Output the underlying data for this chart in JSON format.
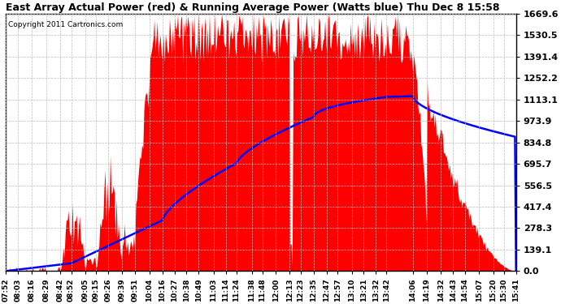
{
  "title": "East Array Actual Power (red) & Running Average Power (Watts blue) Thu Dec 8 15:58",
  "copyright": "Copyright 2011 Cartronics.com",
  "ylabel_right_ticks": [
    0.0,
    139.1,
    278.3,
    417.4,
    556.5,
    695.7,
    834.8,
    973.9,
    1113.1,
    1252.2,
    1391.4,
    1530.5,
    1669.6
  ],
  "ymax": 1669.6,
  "ymin": 0.0,
  "background_color": "#ffffff",
  "plot_bg_color": "#ffffff",
  "grid_color": "#bbbbbb",
  "fill_color": "#ff0000",
  "avg_line_color": "#0000ff",
  "x_labels": [
    "07:52",
    "08:03",
    "08:16",
    "08:29",
    "08:42",
    "08:52",
    "09:05",
    "09:15",
    "09:26",
    "09:39",
    "09:51",
    "10:04",
    "10:16",
    "10:27",
    "10:38",
    "10:49",
    "11:03",
    "11:14",
    "11:24",
    "11:38",
    "11:48",
    "12:00",
    "12:13",
    "12:23",
    "12:35",
    "12:47",
    "12:57",
    "13:10",
    "13:21",
    "13:32",
    "13:42",
    "14:06",
    "14:19",
    "14:32",
    "14:43",
    "14:54",
    "15:07",
    "15:20",
    "15:30",
    "15:41"
  ]
}
